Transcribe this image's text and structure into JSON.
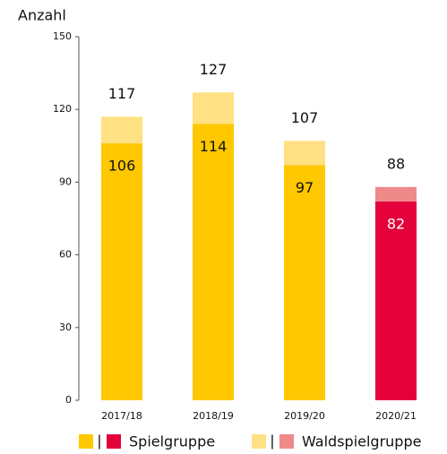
{
  "chart_data": {
    "type": "stacked_bar",
    "y_label": "Anzahl",
    "categories": [
      "2017/18",
      "2018/19",
      "2019/20",
      "2020/21"
    ],
    "series": [
      {
        "name": "Spielgruppe",
        "colors": [
          "#ffc800",
          "#ffc800",
          "#ffc800",
          "#e4003a"
        ],
        "values": [
          106,
          114,
          97,
          82
        ],
        "value_label_colors": [
          "#111111",
          "#111111",
          "#111111",
          "#ffffff"
        ]
      },
      {
        "name": "Waldspielgruppe",
        "colors": [
          "#ffe082",
          "#ffe082",
          "#ffe082",
          "#ee8a8a"
        ],
        "values": [
          11,
          13,
          10,
          6
        ]
      }
    ],
    "totals": [
      117,
      127,
      107,
      88
    ],
    "legend_separator": "|",
    "ylim": [
      0,
      150
    ],
    "yticks": [
      0,
      30,
      60,
      90,
      120,
      150
    ]
  }
}
